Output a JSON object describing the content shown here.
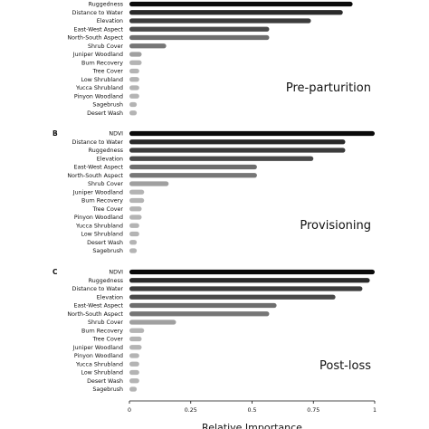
{
  "chart_data": [
    {
      "type": "bar",
      "orientation": "horizontal",
      "panel": "",
      "title": "Pre-parturition",
      "categories": [
        "Ruggedness",
        "Distance to Water",
        "Elevation",
        "East-West Aspect",
        "North-South Aspect",
        "Shrub Cover",
        "Juniper Woodland",
        "Burn Recovery",
        "Tree Cover",
        "Low Shrubland",
        "Yucca Shrubland",
        "Pinyon Woodland",
        "Sagebrush",
        "Desert Wash"
      ],
      "values": [
        0.91,
        0.87,
        0.74,
        0.57,
        0.57,
        0.15,
        0.05,
        0.05,
        0.04,
        0.04,
        0.04,
        0.04,
        0.03,
        0.03
      ],
      "xlim": [
        0,
        1
      ]
    },
    {
      "type": "bar",
      "orientation": "horizontal",
      "panel": "B",
      "title": "Provisioning",
      "categories": [
        "NDVI",
        "Distance to Water",
        "Ruggedness",
        "Elevation",
        "East-West Aspect",
        "North-South Aspect",
        "Shrub Cover",
        "Juniper Woodland",
        "Burn Recovery",
        "Tree Cover",
        "Pinyon Woodland",
        "Yucca Shrubland",
        "Low Shrubland",
        "Desert Wash",
        "Sagebrush"
      ],
      "values": [
        1.0,
        0.88,
        0.88,
        0.75,
        0.52,
        0.52,
        0.16,
        0.06,
        0.06,
        0.05,
        0.05,
        0.04,
        0.04,
        0.03,
        0.03
      ],
      "xlim": [
        0,
        1
      ]
    },
    {
      "type": "bar",
      "orientation": "horizontal",
      "panel": "C",
      "title": "Post-loss",
      "categories": [
        "NDVI",
        "Ruggedness",
        "Distance to Water",
        "Elevation",
        "East-West Aspect",
        "North-South Aspect",
        "Shrub Cover",
        "Burn Recovery",
        "Tree Cover",
        "Juniper Woodland",
        "Pinyon Woodland",
        "Yucca Shrubland",
        "Low Shrubland",
        "Desert Wash",
        "Sagebrush"
      ],
      "values": [
        1.0,
        0.98,
        0.95,
        0.84,
        0.6,
        0.57,
        0.19,
        0.06,
        0.05,
        0.05,
        0.04,
        0.04,
        0.04,
        0.04,
        0.03
      ],
      "xlim": [
        0,
        1
      ],
      "xticks": [
        "0",
        "0.25",
        "0.5",
        "0.75",
        "1"
      ],
      "xlabel": "Relative Importance"
    }
  ],
  "colors": {
    "ranks": [
      "#0a0a0a",
      "#2a2a2a",
      "#3c3c3c",
      "#4a4a4a",
      "#6e6e6e",
      "#767676",
      "#a0a0a0",
      "#b4b4b4"
    ]
  }
}
